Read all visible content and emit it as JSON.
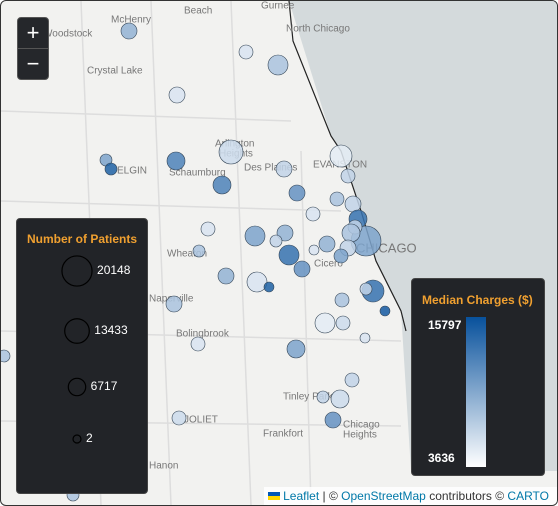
{
  "zoom": {
    "in": "+",
    "out": "−"
  },
  "places": [
    "Beach",
    "Gurnee",
    "North Chicago",
    "McHenry",
    "Woodstock",
    "Crystal Lake",
    "Arlington",
    "Heights",
    "Schaumburg",
    "Des Plaines",
    "EVANSTON",
    "ELGIN",
    "Wheaton",
    "CHICAGO",
    "Cicero",
    "Naperville",
    "Bolingbrook",
    "Tinley Park",
    "JOLIET",
    "Frankfort",
    "Chicago",
    "Heights",
    "Hanon"
  ],
  "size_legend": {
    "title": "Number of Patients",
    "values": [
      20148,
      13433,
      6717,
      2
    ]
  },
  "color_legend": {
    "title": "Median Charges ($)",
    "max": 15797,
    "min": 3636
  },
  "attribution": {
    "leaflet": "Leaflet",
    "sep": "| ©",
    "osm": "OpenStreetMap",
    "rest": "contributors ©",
    "carto": "CARTO"
  }
}
